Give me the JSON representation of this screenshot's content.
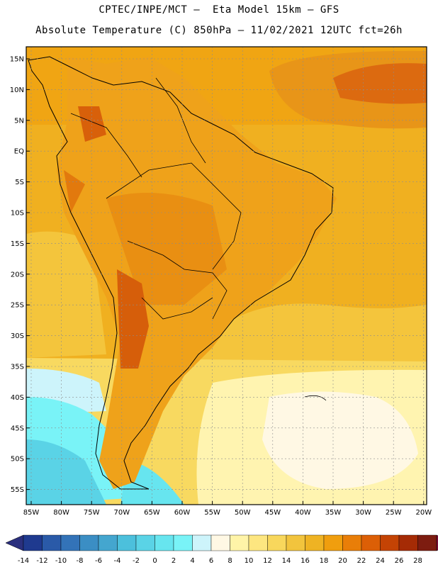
{
  "header": {
    "line1": "CPTEC/INPE/MCT –  Eta Model 15km – GFS",
    "line2": "Absolute Temperature (C) 850hPa – 11/02/2021 12UTC fct=26h"
  },
  "map": {
    "lat_labels": [
      "15N",
      "10N",
      "5N",
      "EQ",
      "5S",
      "10S",
      "15S",
      "20S",
      "25S",
      "30S",
      "35S",
      "40S",
      "45S",
      "50S",
      "55S"
    ],
    "lon_labels": [
      "85W",
      "80W",
      "75W",
      "70W",
      "65W",
      "60W",
      "55W",
      "50W",
      "45W",
      "40W",
      "35W",
      "30W",
      "25W",
      "20W"
    ]
  },
  "colorbar": {
    "labels": [
      "-14",
      "-12",
      "-10",
      "-8",
      "-6",
      "-4",
      "-2",
      "0",
      "2",
      "4",
      "6",
      "8",
      "10",
      "12",
      "14",
      "16",
      "18",
      "20",
      "22",
      "24",
      "26",
      "28"
    ],
    "colors": [
      "#1f3a8f",
      "#2a5aa8",
      "#3373b8",
      "#3b8ec4",
      "#44a6cf",
      "#4cc0dc",
      "#5ad3e6",
      "#67e5ef",
      "#79f3f7",
      "#cdf4fb",
      "#fff8e4",
      "#fff4a8",
      "#fde680",
      "#f8d75c",
      "#f2c43d",
      "#efb323",
      "#f09e0e",
      "#e97e08",
      "#dc5f06",
      "#c44304",
      "#a52b05",
      "#7d1c10"
    ],
    "under_color": "#2a2f7d",
    "over_color": "#800d38"
  }
}
